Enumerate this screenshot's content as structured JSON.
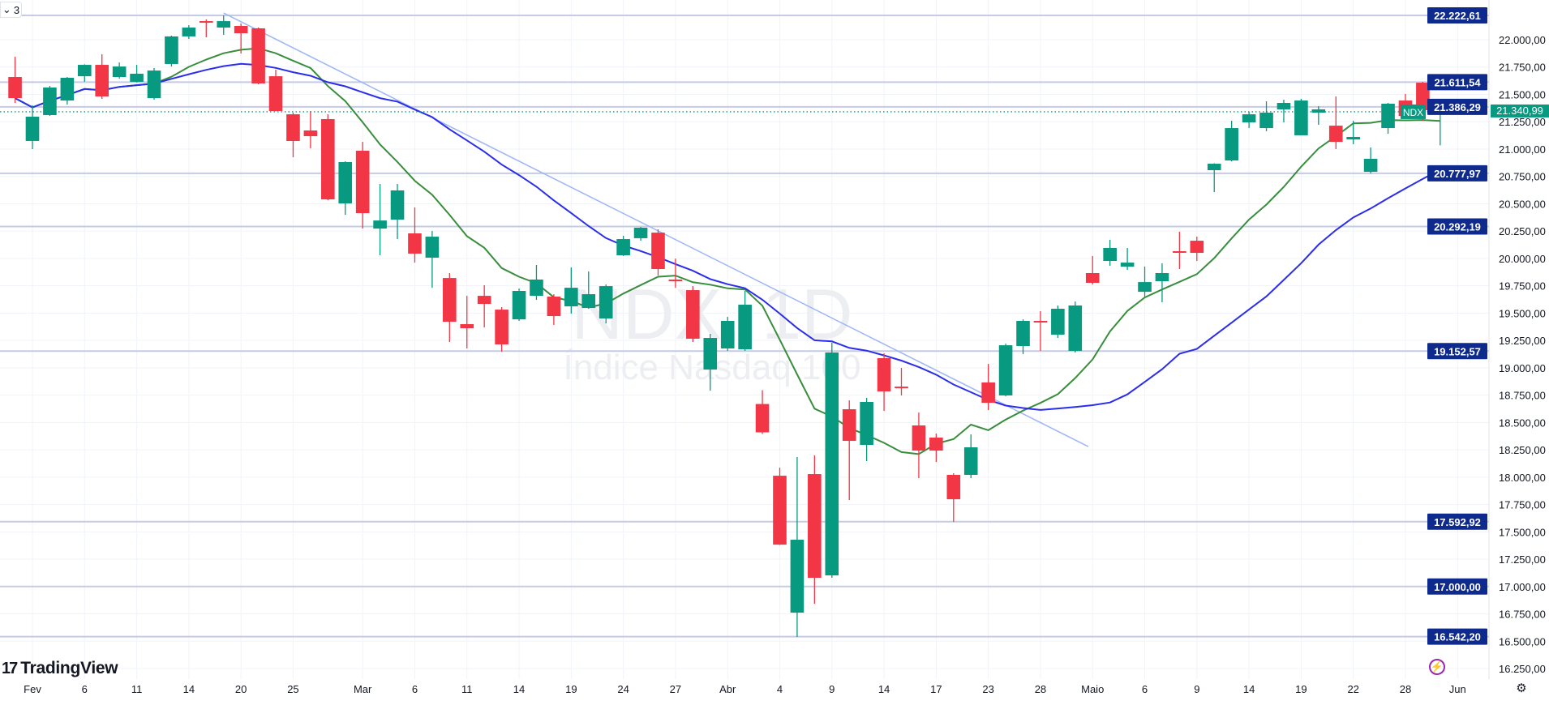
{
  "toolbar": {
    "collapse_label": "3"
  },
  "brand": {
    "logo_text": "TradingView",
    "logo_mark": "17"
  },
  "watermark": {
    "symbol": "NDX, 1D",
    "description": "Índice Nasdaq 100"
  },
  "icons": {
    "bolt": "⚡",
    "settings": "⚙",
    "chevron": "⌄"
  },
  "colors": {
    "up": "#089981",
    "down": "#f23645",
    "ma_fast": "#388e3c",
    "ma_slow": "#2a2eec",
    "level_label": "#0d2a8c",
    "level_line": "#c5cbe6",
    "trendline": "#9db6f5",
    "grid": "#f0f3fa"
  },
  "chart_data": {
    "type": "candlestick",
    "symbol": "NDX",
    "timeframe": "1D",
    "current_price": {
      "tag": "NDX",
      "value": 21340.99,
      "label": "21.340,99"
    },
    "y_range": [
      16150,
      22320
    ],
    "y_ticks": [
      "22.000,00",
      "21.750,00",
      "21.500,00",
      "21.250,00",
      "21.000,00",
      "20.750,00",
      "20.500,00",
      "20.250,00",
      "20.000,00",
      "19.750,00",
      "19.500,00",
      "19.250,00",
      "19.000,00",
      "18.750,00",
      "18.500,00",
      "18.250,00",
      "18.000,00",
      "17.750,00",
      "17.500,00",
      "17.250,00",
      "17.000,00",
      "16.750,00",
      "16.500,00",
      "16.250,00"
    ],
    "y_tick_values": [
      22000,
      21750,
      21500,
      21250,
      21000,
      20750,
      20500,
      20250,
      20000,
      19750,
      19500,
      19250,
      19000,
      18750,
      18500,
      18250,
      18000,
      17750,
      17500,
      17250,
      17000,
      16750,
      16500,
      16250
    ],
    "x_ticks": [
      {
        "label": "Fev",
        "bar": 0
      },
      {
        "label": "6",
        "bar": 3
      },
      {
        "label": "11",
        "bar": 6
      },
      {
        "label": "14",
        "bar": 9
      },
      {
        "label": "20",
        "bar": 12
      },
      {
        "label": "25",
        "bar": 15
      },
      {
        "label": "Mar",
        "bar": 19
      },
      {
        "label": "6",
        "bar": 22
      },
      {
        "label": "11",
        "bar": 25
      },
      {
        "label": "14",
        "bar": 28
      },
      {
        "label": "19",
        "bar": 31
      },
      {
        "label": "24",
        "bar": 34
      },
      {
        "label": "27",
        "bar": 37
      },
      {
        "label": "Abr",
        "bar": 40
      },
      {
        "label": "4",
        "bar": 43
      },
      {
        "label": "9",
        "bar": 46
      },
      {
        "label": "14",
        "bar": 49
      },
      {
        "label": "17",
        "bar": 52
      },
      {
        "label": "23",
        "bar": 55
      },
      {
        "label": "28",
        "bar": 58
      },
      {
        "label": "Maio",
        "bar": 61
      },
      {
        "label": "6",
        "bar": 64
      },
      {
        "label": "9",
        "bar": 67
      },
      {
        "label": "14",
        "bar": 70
      },
      {
        "label": "19",
        "bar": 73
      },
      {
        "label": "22",
        "bar": 76
      },
      {
        "label": "28",
        "bar": 79
      },
      {
        "label": "Jun",
        "bar": 82
      }
    ],
    "levels": [
      {
        "value": 22222.61,
        "label": "22.222,61"
      },
      {
        "value": 21611.54,
        "label": "21.611,54"
      },
      {
        "value": 21386.29,
        "label": "21.386,29"
      },
      {
        "value": 20777.97,
        "label": "20.777,97"
      },
      {
        "value": 20292.19,
        "label": "20.292,19"
      },
      {
        "value": 19152.57,
        "label": "19.152,57"
      },
      {
        "value": 17592.92,
        "label": "17.592,92"
      },
      {
        "value": 17000.0,
        "label": "17.000,00"
      },
      {
        "value": 16542.2,
        "label": "16.542,20"
      }
    ],
    "trendline": {
      "from": {
        "bar": 11,
        "price": 22244
      },
      "to": {
        "bar": 60.75,
        "price": 18280
      }
    },
    "moving_averages": [
      {
        "name": "fast",
        "period": 9
      },
      {
        "name": "slow",
        "period": 21
      }
    ],
    "candles_fields": [
      "open",
      "high",
      "low",
      "close"
    ],
    "candles": [
      {
        "date": "2025-01-31",
        "bar": -1,
        "ohlc": [
          21659,
          21844,
          21422,
          21466
        ]
      },
      {
        "date": "2025-02-03",
        "bar": 0,
        "ohlc": [
          21074,
          21400,
          21000,
          21296
        ]
      },
      {
        "date": "2025-02-04",
        "bar": 1,
        "ohlc": [
          21311,
          21578,
          21303,
          21563
        ]
      },
      {
        "date": "2025-02-05",
        "bar": 2,
        "ohlc": [
          21444,
          21659,
          21407,
          21652
        ]
      },
      {
        "date": "2025-02-06",
        "bar": 3,
        "ohlc": [
          21666,
          21775,
          21615,
          21770
        ]
      },
      {
        "date": "2025-02-07",
        "bar": 4,
        "ohlc": [
          21770,
          21867,
          21459,
          21481
        ]
      },
      {
        "date": "2025-02-10",
        "bar": 5,
        "ohlc": [
          21659,
          21792,
          21644,
          21755
        ]
      },
      {
        "date": "2025-02-11",
        "bar": 6,
        "ohlc": [
          21615,
          21770,
          21610,
          21689
        ]
      },
      {
        "date": "2025-02-12",
        "bar": 7,
        "ohlc": [
          21466,
          21741,
          21452,
          21718
        ]
      },
      {
        "date": "2025-02-13",
        "bar": 8,
        "ohlc": [
          21778,
          22037,
          21755,
          22030
        ]
      },
      {
        "date": "2025-02-14",
        "bar": 9,
        "ohlc": [
          22030,
          22133,
          22007,
          22111
        ]
      },
      {
        "date": "2025-02-18",
        "bar": 10,
        "ohlc": [
          22170,
          22185,
          22022,
          22163
        ]
      },
      {
        "date": "2025-02-19",
        "bar": 11,
        "ohlc": [
          22111,
          22222,
          22044,
          22170
        ]
      },
      {
        "date": "2025-02-20",
        "bar": 12,
        "ohlc": [
          22126,
          22148,
          21874,
          22059
        ]
      },
      {
        "date": "2025-02-21",
        "bar": 13,
        "ohlc": [
          22104,
          22111,
          21592,
          21600
        ]
      },
      {
        "date": "2025-02-24",
        "bar": 14,
        "ohlc": [
          21666,
          21726,
          21345,
          21348
        ]
      },
      {
        "date": "2025-02-25",
        "bar": 15,
        "ohlc": [
          21318,
          21333,
          20925,
          21074
        ]
      },
      {
        "date": "2025-02-26",
        "bar": 16,
        "ohlc": [
          21170,
          21348,
          21007,
          21118
        ]
      },
      {
        "date": "2025-02-27",
        "bar": 17,
        "ohlc": [
          21274,
          21318,
          20533,
          20540
        ]
      },
      {
        "date": "2025-02-28",
        "bar": 18,
        "ohlc": [
          20503,
          20888,
          20399,
          20881
        ]
      },
      {
        "date": "2025-03-03",
        "bar": 19,
        "ohlc": [
          20985,
          21066,
          20273,
          20414
        ]
      },
      {
        "date": "2025-03-04",
        "bar": 20,
        "ohlc": [
          20273,
          20681,
          20029,
          20347
        ]
      },
      {
        "date": "2025-03-05",
        "bar": 21,
        "ohlc": [
          20355,
          20681,
          20177,
          20622
        ]
      },
      {
        "date": "2025-03-06",
        "bar": 22,
        "ohlc": [
          20229,
          20466,
          19962,
          20044
        ]
      },
      {
        "date": "2025-03-07",
        "bar": 23,
        "ohlc": [
          20007,
          20251,
          19732,
          20199
        ]
      },
      {
        "date": "2025-03-10",
        "bar": 24,
        "ohlc": [
          19821,
          19866,
          19236,
          19421
        ]
      },
      {
        "date": "2025-03-11",
        "bar": 25,
        "ohlc": [
          19399,
          19658,
          19177,
          19362
        ]
      },
      {
        "date": "2025-03-12",
        "bar": 26,
        "ohlc": [
          19658,
          19755,
          19369,
          19584
        ]
      },
      {
        "date": "2025-03-13",
        "bar": 27,
        "ohlc": [
          19532,
          19555,
          19147,
          19214
        ]
      },
      {
        "date": "2025-03-14",
        "bar": 28,
        "ohlc": [
          19443,
          19725,
          19429,
          19703
        ]
      },
      {
        "date": "2025-03-17",
        "bar": 29,
        "ohlc": [
          19658,
          19940,
          19621,
          19807
        ]
      },
      {
        "date": "2025-03-18",
        "bar": 30,
        "ohlc": [
          19651,
          19673,
          19392,
          19473
        ]
      },
      {
        "date": "2025-03-19",
        "bar": 31,
        "ohlc": [
          19562,
          19918,
          19495,
          19732
        ]
      },
      {
        "date": "2025-03-20",
        "bar": 32,
        "ohlc": [
          19547,
          19881,
          19540,
          19673
        ]
      },
      {
        "date": "2025-03-21",
        "bar": 33,
        "ohlc": [
          19451,
          19762,
          19406,
          19747
        ]
      },
      {
        "date": "2025-03-24",
        "bar": 34,
        "ohlc": [
          20029,
          20207,
          20022,
          20177
        ]
      },
      {
        "date": "2025-03-25",
        "bar": 35,
        "ohlc": [
          20185,
          20288,
          20162,
          20281
        ]
      },
      {
        "date": "2025-03-26",
        "bar": 36,
        "ohlc": [
          20236,
          20266,
          19844,
          19903
        ]
      },
      {
        "date": "2025-03-27",
        "bar": 37,
        "ohlc": [
          19807,
          19999,
          19732,
          19792
        ]
      },
      {
        "date": "2025-03-28",
        "bar": 38,
        "ohlc": [
          19710,
          19747,
          19236,
          19266
        ]
      },
      {
        "date": "2025-03-31",
        "bar": 39,
        "ohlc": [
          18984,
          19310,
          18791,
          19273
        ]
      },
      {
        "date": "2025-04-01",
        "bar": 40,
        "ohlc": [
          19177,
          19466,
          19155,
          19429
        ]
      },
      {
        "date": "2025-04-02",
        "bar": 41,
        "ohlc": [
          19169,
          19703,
          19155,
          19577
        ]
      },
      {
        "date": "2025-04-03",
        "bar": 42,
        "ohlc": [
          18669,
          18795,
          18395,
          18410
        ]
      },
      {
        "date": "2025-04-04",
        "bar": 43,
        "ohlc": [
          18013,
          18087,
          17380,
          17383
        ]
      },
      {
        "date": "2025-04-07",
        "bar": 44,
        "ohlc": [
          16761,
          18184,
          16539,
          17428
        ]
      },
      {
        "date": "2025-04-08",
        "bar": 45,
        "ohlc": [
          18028,
          18199,
          16843,
          17080
        ]
      },
      {
        "date": "2025-04-09",
        "bar": 46,
        "ohlc": [
          17102,
          19229,
          17080,
          19140
        ]
      },
      {
        "date": "2025-04-10",
        "bar": 47,
        "ohlc": [
          18621,
          18702,
          17791,
          18332
        ]
      },
      {
        "date": "2025-04-11",
        "bar": 48,
        "ohlc": [
          18295,
          18725,
          18147,
          18688
        ]
      },
      {
        "date": "2025-04-14",
        "bar": 49,
        "ohlc": [
          19088,
          19132,
          18606,
          18784
        ]
      },
      {
        "date": "2025-04-15",
        "bar": 50,
        "ohlc": [
          18828,
          18999,
          18747,
          18821
        ]
      },
      {
        "date": "2025-04-16",
        "bar": 51,
        "ohlc": [
          18473,
          18591,
          17991,
          18243
        ]
      },
      {
        "date": "2025-04-17",
        "bar": 52,
        "ohlc": [
          18362,
          18399,
          18139,
          18243
        ]
      },
      {
        "date": "2025-04-21",
        "bar": 53,
        "ohlc": [
          18021,
          18036,
          17591,
          17798
        ]
      },
      {
        "date": "2025-04-22",
        "bar": 54,
        "ohlc": [
          18021,
          18391,
          17991,
          18273
        ]
      },
      {
        "date": "2025-04-23",
        "bar": 55,
        "ohlc": [
          18866,
          19036,
          18613,
          18680
        ]
      },
      {
        "date": "2025-04-24",
        "bar": 56,
        "ohlc": [
          18747,
          19221,
          18739,
          19206
        ]
      },
      {
        "date": "2025-04-25",
        "bar": 57,
        "ohlc": [
          19199,
          19443,
          19125,
          19429
        ]
      },
      {
        "date": "2025-04-28",
        "bar": 58,
        "ohlc": [
          19429,
          19518,
          19155,
          19421
        ]
      },
      {
        "date": "2025-04-29",
        "bar": 59,
        "ohlc": [
          19303,
          19570,
          19273,
          19540
        ]
      },
      {
        "date": "2025-04-30",
        "bar": 60,
        "ohlc": [
          19155,
          19606,
          19140,
          19570
        ]
      },
      {
        "date": "2025-05-01",
        "bar": 61,
        "ohlc": [
          19866,
          20022,
          19762,
          19777
        ]
      },
      {
        "date": "2025-05-02",
        "bar": 62,
        "ohlc": [
          19977,
          20170,
          19933,
          20096
        ]
      },
      {
        "date": "2025-05-05",
        "bar": 63,
        "ohlc": [
          19925,
          20096,
          19895,
          19962
        ]
      },
      {
        "date": "2025-05-06",
        "bar": 64,
        "ohlc": [
          19695,
          19925,
          19651,
          19784
        ]
      },
      {
        "date": "2025-05-07",
        "bar": 65,
        "ohlc": [
          19792,
          19955,
          19599,
          19866
        ]
      },
      {
        "date": "2025-05-08",
        "bar": 66,
        "ohlc": [
          20066,
          20244,
          19903,
          20059
        ]
      },
      {
        "date": "2025-05-09",
        "bar": 67,
        "ohlc": [
          20162,
          20199,
          19977,
          20051
        ]
      },
      {
        "date": "2025-05-12",
        "bar": 68,
        "ohlc": [
          20807,
          20870,
          20607,
          20866
        ]
      },
      {
        "date": "2025-05-13",
        "bar": 69,
        "ohlc": [
          20896,
          21259,
          20888,
          21192
        ]
      },
      {
        "date": "2025-05-14",
        "bar": 70,
        "ohlc": [
          21244,
          21340,
          21192,
          21318
        ]
      },
      {
        "date": "2025-05-15",
        "bar": 71,
        "ohlc": [
          21192,
          21437,
          21163,
          21333
        ]
      },
      {
        "date": "2025-05-16",
        "bar": 72,
        "ohlc": [
          21363,
          21452,
          21244,
          21422
        ]
      },
      {
        "date": "2025-05-19",
        "bar": 73,
        "ohlc": [
          21126,
          21459,
          21126,
          21444
        ]
      },
      {
        "date": "2025-05-20",
        "bar": 74,
        "ohlc": [
          21333,
          21392,
          21222,
          21363
        ]
      },
      {
        "date": "2025-05-21",
        "bar": 75,
        "ohlc": [
          21214,
          21481,
          21000,
          21066
        ]
      },
      {
        "date": "2025-05-22",
        "bar": 76,
        "ohlc": [
          21088,
          21259,
          21044,
          21111
        ]
      },
      {
        "date": "2025-05-23",
        "bar": 77,
        "ohlc": [
          20792,
          21015,
          20777,
          20911
        ]
      },
      {
        "date": "2025-05-27",
        "bar": 78,
        "ohlc": [
          21192,
          21422,
          21140,
          21415
        ]
      },
      {
        "date": "2025-05-28",
        "bar": 79,
        "ohlc": [
          21444,
          21504,
          21303,
          21303
        ]
      },
      {
        "date": "2025-05-29",
        "bar": 80,
        "ohlc": [
          21607,
          21615,
          21259,
          21355
        ]
      },
      {
        "date": "2025-05-30",
        "bar": 81,
        "ohlc": [
          21318,
          21385,
          21034,
          21341
        ]
      }
    ]
  }
}
